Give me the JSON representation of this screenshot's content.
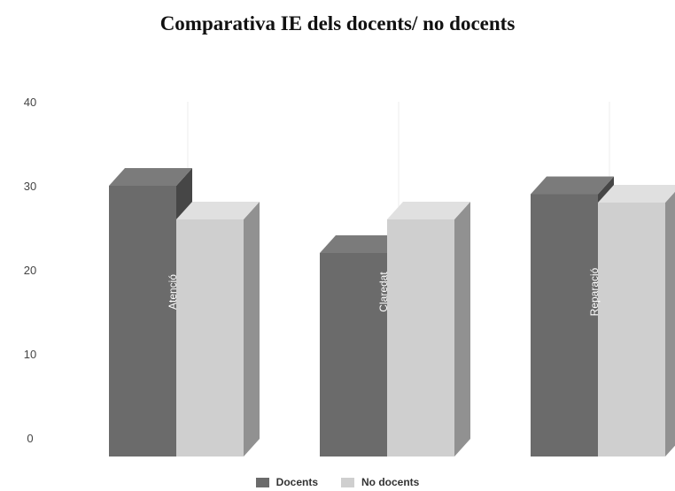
{
  "chart_data": {
    "type": "bar",
    "title": "Comparativa IE dels docents/ no docents",
    "categories": [
      "Atenció",
      "Claredat",
      "Reparació"
    ],
    "series": [
      {
        "name": "Docents",
        "values": [
          30,
          22,
          29
        ],
        "color": "#6b6b6b"
      },
      {
        "name": "No docents",
        "values": [
          26,
          26,
          28
        ],
        "color": "#cfcfcf"
      }
    ],
    "ylim": [
      0,
      40
    ],
    "yticks": [
      0,
      10,
      20,
      30,
      40
    ],
    "grid": false,
    "legend": "bottom",
    "style": "3d"
  }
}
